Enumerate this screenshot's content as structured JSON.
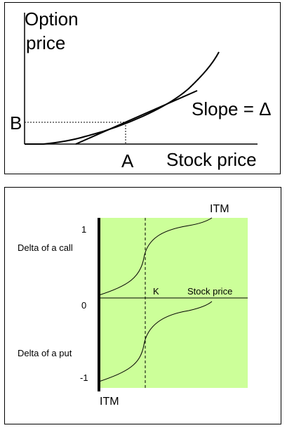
{
  "top_diagram": {
    "y_axis_label_line1": "Option",
    "y_axis_label_line2": "price",
    "x_axis_label": "Stock price",
    "point_x_label": "A",
    "point_y_label": "B",
    "slope_label": "Slope = Δ"
  },
  "bottom_diagram": {
    "itm_top_label": "ITM",
    "itm_bottom_label": "ITM",
    "tick_one": "1",
    "tick_zero": "0",
    "tick_minus_one": "-1",
    "call_label": "Delta of a call",
    "put_label": "Delta of a put",
    "strike_label": "K",
    "x_axis_label": "Stock price",
    "plot_background": "#ccff99"
  }
}
